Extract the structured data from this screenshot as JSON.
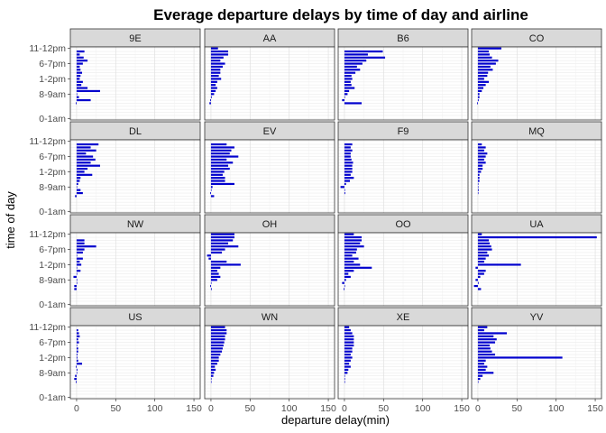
{
  "chart_data": {
    "type": "bar",
    "orientation": "horizontal",
    "title": "Everage departure delays by time of day and airline",
    "xlabel": "departure delay(min)",
    "ylabel": "time of day",
    "xlim": [
      -8,
      158
    ],
    "x_ticks": [
      "0",
      "50",
      "100",
      "150"
    ],
    "x_tick_values": [
      0,
      50,
      100,
      150
    ],
    "y_categories": [
      "0-1am",
      "1-2am",
      "2-3am",
      "3-4am",
      "4-5am",
      "5-6am",
      "6-7am",
      "7-8am",
      "8-9am",
      "9-10am",
      "10-11am",
      "11-12am",
      "12-1pm",
      "1-2pm",
      "2-3pm",
      "3-4pm",
      "4-5pm",
      "5-6pm",
      "6-7pm",
      "7-8pm",
      "8-9pm",
      "9-10pm",
      "10-11pm",
      "11-12pm"
    ],
    "y_tick_labels": [
      "0-1am",
      "8-9am",
      "1-2pm",
      "6-7pm",
      "11-12pm"
    ],
    "y_tick_indices": [
      0,
      8,
      13,
      18,
      23
    ],
    "bar_color": "#0000CD",
    "grid": true,
    "facet_layout": {
      "rows": 4,
      "cols": 4
    },
    "panels": [
      {
        "name": "9E",
        "values": [
          null,
          null,
          null,
          null,
          null,
          -1,
          18,
          3,
          0,
          30,
          14,
          6,
          8,
          4,
          5,
          7,
          5,
          4,
          8,
          14,
          9,
          4,
          10,
          null
        ]
      },
      {
        "name": "AA",
        "values": [
          null,
          null,
          null,
          null,
          null,
          -2,
          -1,
          1,
          4,
          6,
          8,
          6,
          8,
          13,
          10,
          12,
          12,
          15,
          18,
          12,
          16,
          22,
          22,
          9
        ]
      },
      {
        "name": "B6",
        "values": [
          null,
          null,
          null,
          null,
          null,
          22,
          -3,
          0,
          4,
          6,
          13,
          9,
          8,
          10,
          9,
          14,
          20,
          16,
          23,
          28,
          52,
          30,
          49,
          null
        ]
      },
      {
        "name": "CO",
        "values": [
          null,
          null,
          null,
          null,
          null,
          -1,
          1,
          2,
          2,
          5,
          7,
          10,
          14,
          8,
          12,
          13,
          19,
          16,
          23,
          26,
          18,
          15,
          14,
          30
        ]
      },
      {
        "name": "DL",
        "values": [
          null,
          null,
          null,
          null,
          null,
          -2,
          8,
          5,
          0,
          2,
          4,
          5,
          20,
          10,
          14,
          30,
          18,
          24,
          21,
          12,
          25,
          18,
          28,
          null
        ]
      },
      {
        "name": "EV",
        "values": [
          null,
          null,
          null,
          null,
          null,
          4,
          -1,
          0,
          2,
          30,
          18,
          18,
          15,
          17,
          24,
          22,
          28,
          20,
          35,
          24,
          26,
          30,
          20,
          null
        ]
      },
      {
        "name": "F9",
        "values": [
          null,
          null,
          null,
          null,
          null,
          null,
          1,
          0,
          -5,
          2,
          7,
          12,
          8,
          10,
          10,
          10,
          11,
          9,
          8,
          8,
          10,
          8,
          10,
          null
        ]
      },
      {
        "name": "MQ",
        "values": [
          null,
          null,
          null,
          null,
          null,
          null,
          0,
          1,
          0,
          0,
          2,
          2,
          2,
          4,
          6,
          6,
          10,
          8,
          10,
          12,
          8,
          10,
          5,
          null
        ]
      },
      {
        "name": "NW",
        "values": [
          null,
          null,
          null,
          null,
          null,
          -3,
          -3,
          0,
          0,
          -4,
          0,
          5,
          0,
          6,
          4,
          8,
          0,
          8,
          10,
          25,
          10,
          10,
          null,
          null
        ]
      },
      {
        "name": "OH",
        "values": [
          null,
          null,
          null,
          null,
          null,
          1,
          -1,
          0,
          8,
          12,
          10,
          8,
          12,
          38,
          20,
          -3,
          -5,
          14,
          18,
          35,
          22,
          28,
          30,
          30
        ]
      },
      {
        "name": "OO",
        "values": [
          null,
          null,
          null,
          null,
          null,
          -1,
          0,
          -3,
          2,
          8,
          5,
          12,
          35,
          20,
          12,
          18,
          10,
          15,
          16,
          25,
          20,
          22,
          22,
          12
        ]
      },
      {
        "name": "UA",
        "values": [
          null,
          null,
          null,
          null,
          null,
          4,
          -5,
          1,
          -3,
          3,
          8,
          10,
          -3,
          55,
          8,
          10,
          14,
          12,
          18,
          17,
          15,
          14,
          152,
          5
        ]
      },
      {
        "name": "US",
        "values": [
          null,
          null,
          null,
          null,
          null,
          -1,
          -3,
          -2,
          0,
          1,
          -1,
          7,
          2,
          1,
          1,
          2,
          2,
          0,
          3,
          2,
          4,
          3,
          2,
          null
        ]
      },
      {
        "name": "WN",
        "values": [
          null,
          null,
          null,
          null,
          null,
          0,
          0,
          3,
          4,
          6,
          5,
          8,
          10,
          10,
          12,
          14,
          15,
          16,
          17,
          18,
          18,
          20,
          20,
          18
        ]
      },
      {
        "name": "XE",
        "values": [
          null,
          null,
          null,
          null,
          null,
          0,
          0,
          0,
          4,
          5,
          8,
          6,
          8,
          10,
          8,
          10,
          10,
          12,
          12,
          12,
          12,
          10,
          8,
          6
        ]
      },
      {
        "name": "YV",
        "values": [
          null,
          null,
          null,
          null,
          null,
          0,
          3,
          6,
          20,
          10,
          12,
          8,
          10,
          108,
          22,
          18,
          16,
          15,
          22,
          24,
          20,
          37,
          8,
          12
        ]
      }
    ]
  }
}
